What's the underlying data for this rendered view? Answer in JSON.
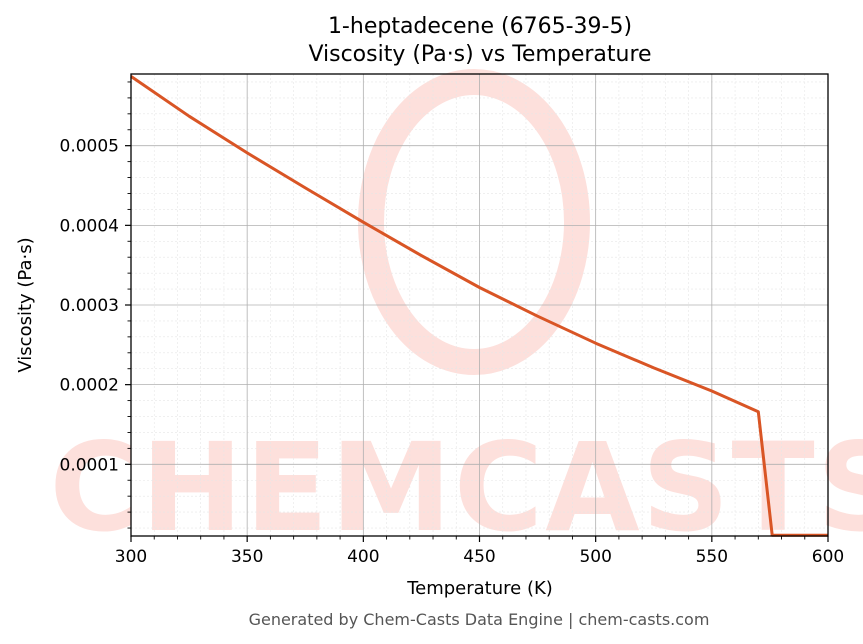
{
  "chart_data": {
    "type": "line",
    "title": "1-heptadecene (6765-39-5)",
    "subtitle": "Viscosity (Pa·s) vs Temperature",
    "xlabel": "Temperature (K)",
    "ylabel": "Viscosity (Pa·s)",
    "xlim": [
      300,
      600
    ],
    "ylim": [
      1e-05,
      0.00059
    ],
    "x_ticks": [
      300,
      350,
      400,
      450,
      500,
      550,
      600
    ],
    "x_tick_labels": [
      "300",
      "350",
      "400",
      "450",
      "500",
      "550",
      "600"
    ],
    "y_ticks": [
      0.0001,
      0.0002,
      0.0003,
      0.0004,
      0.0005
    ],
    "y_tick_labels": [
      "0.0001",
      "0.0002",
      "0.0003",
      "0.0004",
      "0.0005"
    ],
    "grid": true,
    "series": [
      {
        "color": "#d95525",
        "x": [
          300,
          325,
          350,
          375,
          400,
          425,
          450,
          475,
          500,
          525,
          550,
          570,
          576,
          600
        ],
        "y": [
          0.000587,
          0.000537,
          0.000491,
          0.000447,
          0.000404,
          0.000362,
          0.000322,
          0.000286,
          0.000252,
          0.000221,
          0.000192,
          0.000166,
          1.1e-05,
          1.1e-05
        ]
      }
    ]
  },
  "footer": "Generated by Chem-Casts Data Engine | chem-casts.com",
  "watermark": "CHEMCASTS"
}
